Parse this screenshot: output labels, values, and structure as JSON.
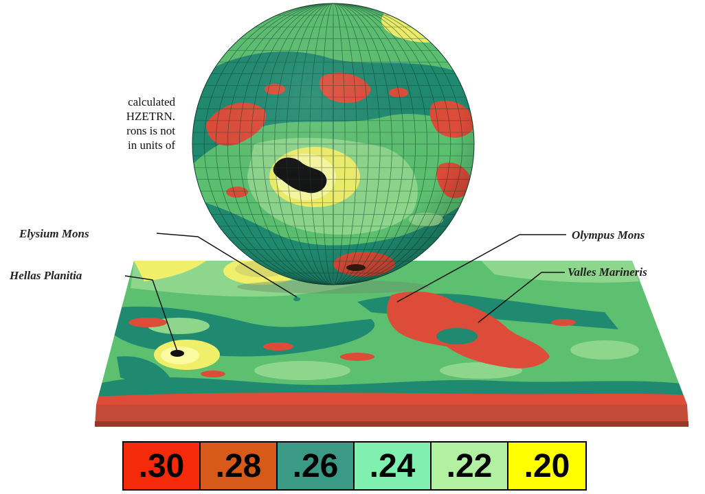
{
  "caption_lines": [
    "calculated",
    "HZETRN.",
    "rons is not",
    "in units of"
  ],
  "labels": {
    "elysium": "Elysium Mons",
    "olympus": "Olympus Mons",
    "hellas": "Hellas Planitia",
    "valles": "Valles Marineris"
  },
  "legend": [
    {
      "value": ".30",
      "color": "#f52a0a"
    },
    {
      "value": ".28",
      "color": "#d85a1a"
    },
    {
      "value": ".26",
      "color": "#3a9a86"
    },
    {
      "value": ".24",
      "color": "#7ff0b0"
    },
    {
      "value": ".22",
      "color": "#b2f0a2"
    },
    {
      "value": ".20",
      "color": "#ffff00"
    }
  ],
  "colors": {
    "red": "#dd4c38",
    "teal": "#1f8a70",
    "green": "#5cc070",
    "lightgreen": "#8ed68c",
    "yellow": "#f0ef6a",
    "black": "#111111",
    "slab_edge": "#c24a36"
  }
}
